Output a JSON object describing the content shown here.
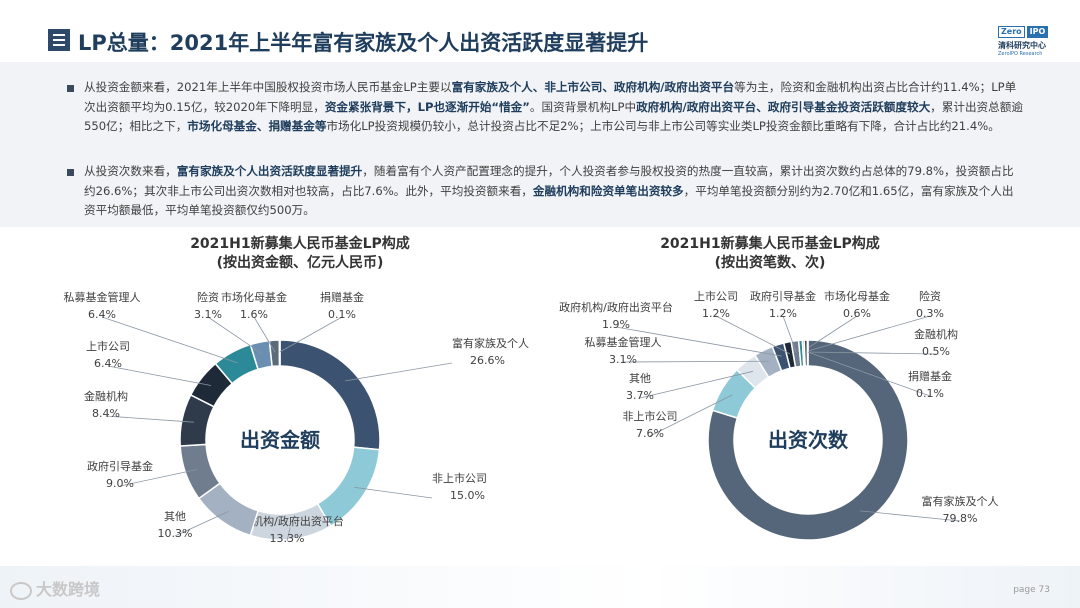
{
  "header": {
    "title": "LP总量：2021年上半年富有家族及个人出资活跃度显著提升",
    "logo": {
      "box1": "Zero",
      "box2": "IPO",
      "cn": "清科研究中心",
      "en": "ZeroIPO Research"
    }
  },
  "paragraphs": [
    [
      {
        "t": "从投资金额来看，2021年上半年中国股权投资市场人民币基金LP主要以",
        "b": false
      },
      {
        "t": "富有家族及个人、非上市公司、政府机构/政府出资平台",
        "b": true
      },
      {
        "t": "等为主，险资和金融机构出资占比合计约11.4%；LP单次出资额平均为0.15亿，较2020年下降明显，",
        "b": false
      },
      {
        "t": "资金紧张背景下，LP也逐渐开始“惜金”",
        "b": true
      },
      {
        "t": "。国资背景机构LP中",
        "b": false
      },
      {
        "t": "政府机构/政府出资平台、政府引导基金投资活跃额度较大",
        "b": true
      },
      {
        "t": "，累计出资总额逾550亿；相比之下，",
        "b": false
      },
      {
        "t": "市场化母基金、捐赠基金等",
        "b": true
      },
      {
        "t": "市场化LP投资规模仍较小，总计投资占比不足2%；上市公司与非上市公司等实业类LP投资金额比重略有下降，合计占比约21.4%。",
        "b": false
      }
    ],
    [
      {
        "t": "从投资次数来看，",
        "b": false
      },
      {
        "t": "富有家族及个人出资活跃度显著提升",
        "b": true
      },
      {
        "t": "，随着富有个人资产配置理念的提升，个人投资者参与股权投资的热度一直较高，累计出资次数约占总体的79.8%，投资额占比约26.6%；其次非上市公司出资次数相对也较高，占比7.6%。此外，平均投资额来看，",
        "b": false
      },
      {
        "t": "金融机构和险资单笔出资较多",
        "b": true
      },
      {
        "t": "，平均单笔投资额分别约为2.70亿和1.65亿，富有家族及个人出资平均额最低，平均单笔投资额仅约500万。",
        "b": false
      }
    ]
  ],
  "chart_data": [
    {
      "type": "pie",
      "title_line1": "2021H1新募集人民币基金LP构成",
      "title_line2": "(按出资金额、亿元人民币)",
      "center_label": "出资金额",
      "slices": [
        {
          "name": "富有家族及个人",
          "label": "26.6%",
          "value": 26.6,
          "color": "#3b5270"
        },
        {
          "name": "非上市公司",
          "label": "15.0%",
          "value": 15.0,
          "color": "#8ec9d8"
        },
        {
          "name": "政府机构/政府出资平台",
          "label": "13.3%",
          "value": 13.3,
          "color": "#cdd5df"
        },
        {
          "name": "其他",
          "label": "10.3%",
          "value": 10.3,
          "color": "#a3b1c2"
        },
        {
          "name": "政府引导基金",
          "label": "9.0%",
          "value": 9.0,
          "color": "#6f7d8e"
        },
        {
          "name": "金融机构",
          "label": "8.4%",
          "value": 8.4,
          "color": "#2f3b4a"
        },
        {
          "name": "上市公司",
          "label": "6.4%",
          "value": 6.4,
          "color": "#1f2a38"
        },
        {
          "name": "私募基金管理人",
          "label": "6.4%",
          "value": 6.4,
          "color": "#2c8a98"
        },
        {
          "name": "险资",
          "label": "3.1%",
          "value": 3.1,
          "color": "#6a8fb2"
        },
        {
          "name": "市场化母基金",
          "label": "1.6%",
          "value": 1.6,
          "color": "#5c6b7a"
        },
        {
          "name": "捐赠基金",
          "label": "0.1%",
          "value": 0.1,
          "color": "#9aa8b8"
        }
      ]
    },
    {
      "type": "pie",
      "title_line1": "2021H1新募集人民币基金LP构成",
      "title_line2": "(按出资笔数、次)",
      "center_label": "出资次数",
      "slices": [
        {
          "name": "富有家族及个人",
          "label": "79.8%",
          "value": 79.8,
          "color": "#55667a"
        },
        {
          "name": "非上市公司",
          "label": "7.6%",
          "value": 7.6,
          "color": "#8ec9d8"
        },
        {
          "name": "其他",
          "label": "3.7%",
          "value": 3.7,
          "color": "#dfe5ec"
        },
        {
          "name": "私募基金管理人",
          "label": "3.1%",
          "value": 3.1,
          "color": "#a3b1c2"
        },
        {
          "name": "政府机构/政府出资平台",
          "label": "1.9%",
          "value": 1.9,
          "color": "#3b5270"
        },
        {
          "name": "上市公司",
          "label": "1.2%",
          "value": 1.2,
          "color": "#1f2a38"
        },
        {
          "name": "政府引导基金",
          "label": "1.2%",
          "value": 1.2,
          "color": "#6f7d8e"
        },
        {
          "name": "市场化母基金",
          "label": "0.6%",
          "value": 0.6,
          "color": "#2c8a98"
        },
        {
          "name": "险资",
          "label": "0.3%",
          "value": 0.3,
          "color": "#6a8fb2"
        },
        {
          "name": "金融机构",
          "label": "0.5%",
          "value": 0.5,
          "color": "#2f3b4a"
        },
        {
          "name": "捐赠基金",
          "label": "0.1%",
          "value": 0.1,
          "color": "#9aa8b8"
        }
      ]
    }
  ],
  "footer": {
    "watermark": "大数跨境",
    "page": "page  73"
  }
}
